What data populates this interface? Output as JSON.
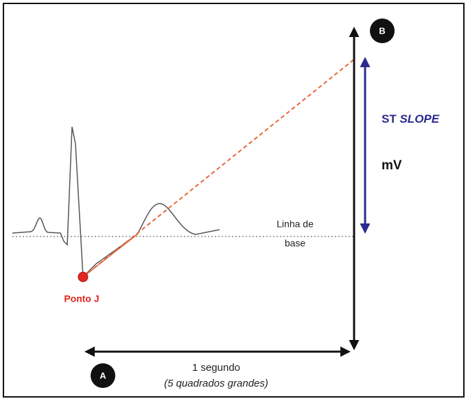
{
  "marker_b": "B",
  "st_slope": {
    "prefix": "ST",
    "emphasis": "SLOPE"
  },
  "unit": "mV",
  "baseline_label": {
    "lines": [
      "Linha de",
      "base"
    ]
  },
  "j_point": "Ponto J",
  "marker_a": "A",
  "duration": {
    "label": "1 segundo",
    "note": "(5 quadrados grandes)"
  }
}
